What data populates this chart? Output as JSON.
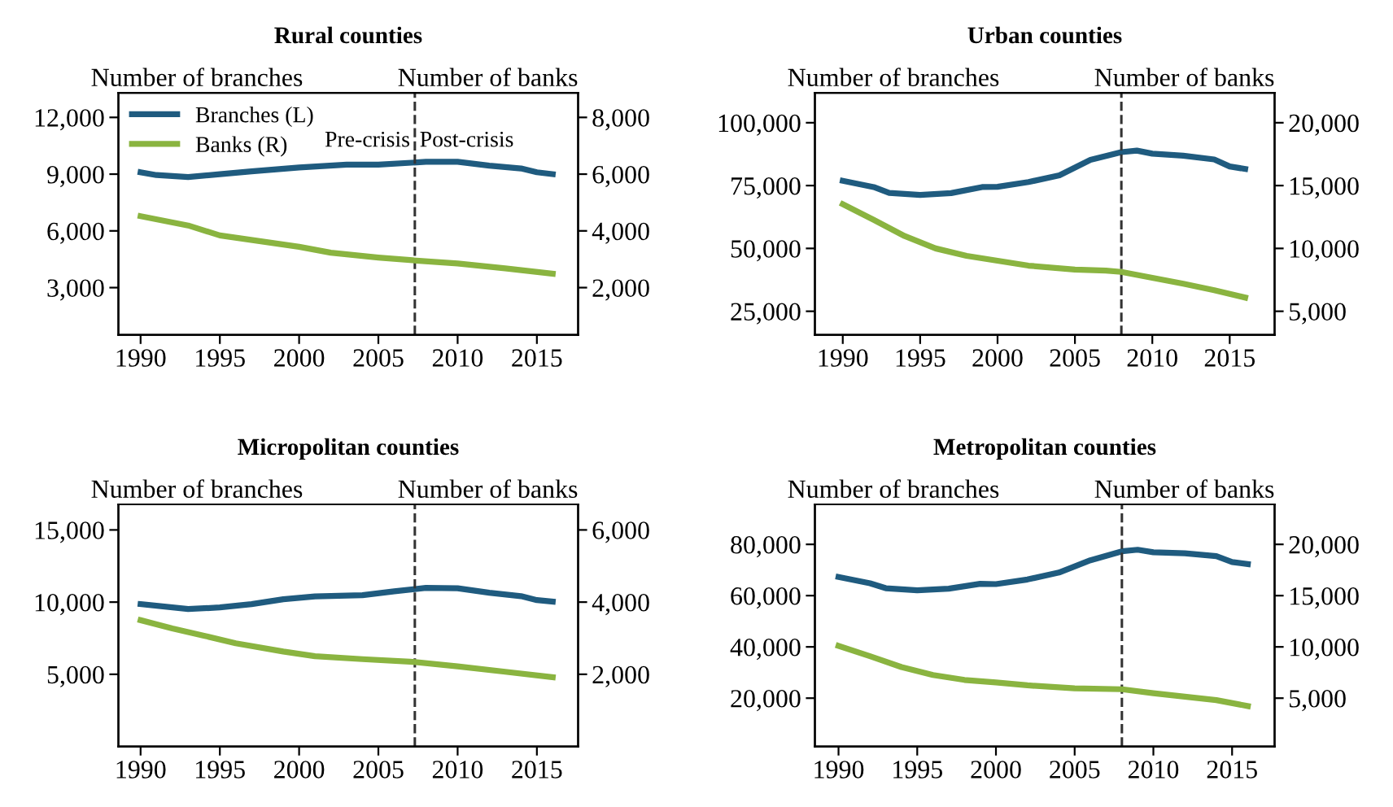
{
  "chart_data": [
    {
      "type": "line",
      "title": "Rural counties",
      "ylabel": "Number of branches",
      "y2label": "Number of banks",
      "xlim": [
        1988.6,
        2017.6
      ],
      "xticks": [
        1990,
        1995,
        2000,
        2005,
        2010,
        2015
      ],
      "ylim": [
        500,
        13300
      ],
      "yticks": [
        {
          "value": 3000,
          "label": "3,000"
        },
        {
          "value": 6000,
          "label": "6,000"
        },
        {
          "value": 9000,
          "label": "9,000"
        },
        {
          "value": 12000,
          "label": "12,000"
        }
      ],
      "y2lim": [
        333,
        8867
      ],
      "y2ticks": [
        {
          "value": 2000,
          "label": "2,000"
        },
        {
          "value": 4000,
          "label": "4,000"
        },
        {
          "value": 6000,
          "label": "6,000"
        },
        {
          "value": 8000,
          "label": "8,000"
        }
      ],
      "legend": "top left",
      "grid": false,
      "ref_lines": [
        {
          "axis": "x",
          "value": 2007.3,
          "line_style": "dashed",
          "color": "#333333"
        }
      ],
      "annotations": [
        "Pre-crisis",
        "Post-crisis"
      ],
      "series": [
        {
          "name": "Branches (L)",
          "color": "#1f5b7f",
          "x": [
            1990,
            1991,
            1993,
            1995,
            1997,
            2000,
            2003,
            2005,
            2008,
            2010,
            2012,
            2014,
            2015,
            2016
          ],
          "values": [
            9100,
            8950,
            8850,
            9000,
            9150,
            9350,
            9500,
            9500,
            9650,
            9650,
            9450,
            9300,
            9100,
            9000
          ]
        },
        {
          "name": "Banks (R)",
          "color": "#8ab440",
          "axis": "y2",
          "x": [
            1990,
            1993,
            1995,
            2000,
            2002,
            2005,
            2007,
            2010,
            2013,
            2016
          ],
          "values": [
            4520,
            4190,
            3840,
            3440,
            3230,
            3060,
            2970,
            2850,
            2680,
            2490
          ]
        }
      ]
    },
    {
      "type": "line",
      "title": "Urban counties",
      "ylabel": "Number of branches",
      "y2label": "Number of banks",
      "xlim": [
        1988.2,
        2017.9
      ],
      "xticks": [
        1990,
        1995,
        2000,
        2005,
        2010,
        2015
      ],
      "ylim": [
        15600,
        111900
      ],
      "yticks": [
        {
          "value": 25000,
          "label": "25,000"
        },
        {
          "value": 50000,
          "label": "50,000"
        },
        {
          "value": 75000,
          "label": "75,000"
        },
        {
          "value": 100000,
          "label": "100,000"
        }
      ],
      "y2lim": [
        3120,
        22380
      ],
      "y2ticks": [
        {
          "value": 5000,
          "label": "5,000"
        },
        {
          "value": 10000,
          "label": "10,000"
        },
        {
          "value": 15000,
          "label": "15,000"
        },
        {
          "value": 20000,
          "label": "20,000"
        }
      ],
      "grid": false,
      "ref_lines": [
        {
          "axis": "x",
          "value": 2008,
          "line_style": "dashed",
          "color": "#333333"
        }
      ],
      "series": [
        {
          "color": "#1f5b7f",
          "x": [
            1990,
            1992,
            1993,
            1995,
            1997,
            1999,
            2000,
            2002,
            2004,
            2006,
            2008,
            2009,
            2010,
            2012,
            2014,
            2015,
            2016
          ],
          "values": [
            76900,
            74400,
            72100,
            71300,
            72000,
            74400,
            74500,
            76400,
            79100,
            85200,
            88300,
            88900,
            87700,
            86900,
            85400,
            82600,
            81600
          ]
        },
        {
          "color": "#8ab440",
          "axis": "y2",
          "x": [
            1990,
            1992,
            1994,
            1996,
            1998,
            2000,
            2002,
            2005,
            2007,
            2008,
            2010,
            2012,
            2014,
            2016
          ],
          "values": [
            13520,
            12270,
            10980,
            10000,
            9410,
            9020,
            8630,
            8320,
            8240,
            8130,
            7660,
            7190,
            6680,
            6090
          ]
        }
      ]
    },
    {
      "type": "line",
      "title": "Micropolitan counties",
      "ylabel": "Number of branches",
      "y2label": "Number of banks",
      "xlim": [
        1988.6,
        2017.6
      ],
      "xticks": [
        1990,
        1995,
        2000,
        2005,
        2010,
        2015
      ],
      "ylim": [
        0,
        16770
      ],
      "yticks": [
        {
          "value": 5000,
          "label": "5,000"
        },
        {
          "value": 10000,
          "label": "10,000"
        },
        {
          "value": 15000,
          "label": "15,000"
        }
      ],
      "y2lim": [
        0,
        6708
      ],
      "y2ticks": [
        {
          "value": 2000,
          "label": "2,000"
        },
        {
          "value": 4000,
          "label": "4,000"
        },
        {
          "value": 6000,
          "label": "6,000"
        }
      ],
      "grid": false,
      "ref_lines": [
        {
          "axis": "x",
          "value": 2007.3,
          "line_style": "dashed",
          "color": "#333333"
        }
      ],
      "series": [
        {
          "color": "#1f5b7f",
          "x": [
            1990,
            1993,
            1995,
            1997,
            1999,
            2001,
            2004,
            2006,
            2008,
            2010,
            2012,
            2014,
            2015,
            2016
          ],
          "values": [
            9860,
            9520,
            9630,
            9860,
            10200,
            10400,
            10480,
            10750,
            10990,
            10960,
            10650,
            10410,
            10140,
            10030
          ]
        },
        {
          "color": "#8ab440",
          "axis": "y2",
          "x": [
            1990,
            1992,
            1994,
            1996,
            1999,
            2001,
            2004,
            2007,
            2010,
            2013,
            2016
          ],
          "values": [
            3500,
            3270,
            3070,
            2860,
            2630,
            2500,
            2420,
            2350,
            2220,
            2070,
            1920
          ]
        }
      ]
    },
    {
      "type": "line",
      "title": "Metropolitan counties",
      "ylabel": "Number of branches",
      "y2label": "Number of banks",
      "xlim": [
        1988.5,
        2017.7
      ],
      "xticks": [
        1990,
        1995,
        2000,
        2005,
        2010,
        2015
      ],
      "ylim": [
        1150,
        95600
      ],
      "yticks": [
        {
          "value": 20000,
          "label": "20,000"
        },
        {
          "value": 40000,
          "label": "40,000"
        },
        {
          "value": 60000,
          "label": "60,000"
        },
        {
          "value": 80000,
          "label": "80,000"
        }
      ],
      "y2lim": [
        288,
        23900
      ],
      "y2ticks": [
        {
          "value": 5000,
          "label": "5,000"
        },
        {
          "value": 10000,
          "label": "10,000"
        },
        {
          "value": 15000,
          "label": "15,000"
        },
        {
          "value": 20000,
          "label": "20,000"
        }
      ],
      "grid": false,
      "ref_lines": [
        {
          "axis": "x",
          "value": 2008,
          "line_style": "dashed",
          "color": "#333333"
        }
      ],
      "series": [
        {
          "color": "#1f5b7f",
          "x": [
            1990,
            1992,
            1993,
            1995,
            1997,
            1999,
            2000,
            2002,
            2004,
            2006,
            2008,
            2009,
            2010,
            2012,
            2014,
            2015,
            2016
          ],
          "values": [
            67300,
            64800,
            62900,
            62100,
            62700,
            64600,
            64500,
            66300,
            69000,
            73800,
            77300,
            77900,
            76900,
            76500,
            75400,
            73100,
            72300
          ]
        },
        {
          "color": "#8ab440",
          "axis": "y2",
          "x": [
            1990,
            1992,
            1994,
            1996,
            1998,
            2000,
            2002,
            2005,
            2008,
            2010,
            2012,
            2014,
            2016
          ],
          "values": [
            10100,
            9090,
            8030,
            7260,
            6780,
            6540,
            6250,
            5960,
            5870,
            5480,
            5140,
            4810,
            4230
          ]
        }
      ]
    }
  ]
}
